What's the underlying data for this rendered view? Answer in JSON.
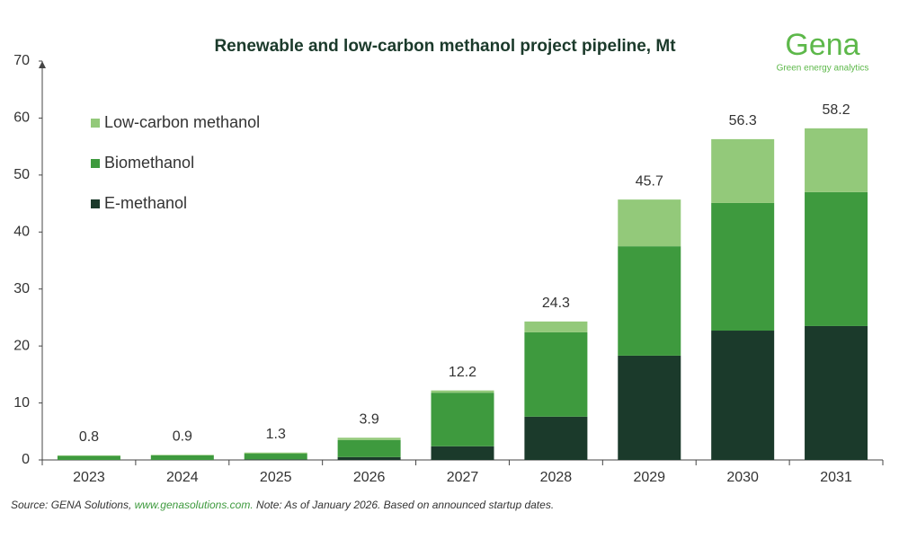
{
  "chart_data": {
    "type": "stacked_bar",
    "title": "Renewable and low-carbon methanol project pipeline, Mt",
    "logo": "Gena",
    "logo_tagline": "Green energy analytics",
    "categories": [
      "2023",
      "2024",
      "2025",
      "2026",
      "2027",
      "2028",
      "2029",
      "2030",
      "2031"
    ],
    "series": [
      {
        "name": "E-methanol",
        "color": "#1b3a2b",
        "values": [
          0,
          0,
          0.1,
          0.5,
          2.4,
          7.6,
          18.3,
          22.7,
          23.5
        ]
      },
      {
        "name": "Biomethanol",
        "color": "#3e9a3e",
        "values": [
          0.7,
          0.8,
          1.0,
          3.0,
          9.4,
          14.8,
          19.2,
          22.4,
          23.5
        ]
      },
      {
        "name": "Low-carbon methanol",
        "color": "#93c97a",
        "values": [
          0.1,
          0.1,
          0.2,
          0.4,
          0.4,
          1.9,
          8.2,
          11.2,
          11.2
        ]
      }
    ],
    "totals": [
      0.8,
      0.9,
      1.3,
      3.9,
      12.2,
      24.3,
      45.7,
      56.3,
      58.2
    ],
    "ylim": [
      0,
      70
    ],
    "yticks": [
      0,
      10,
      20,
      30,
      40,
      50,
      60,
      70
    ],
    "legend": "top-left",
    "footnote": {
      "source": "Source: GENA Solutions, ",
      "link": "www.genasolutions.com.",
      "note": " Note: As of January 2026. Based on announced startup dates."
    }
  }
}
